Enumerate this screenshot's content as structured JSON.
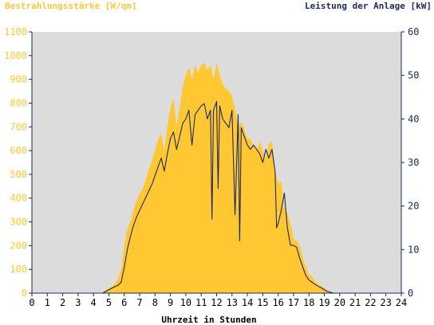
{
  "colors": {
    "irradiance": "#FFC832",
    "power": "#1B2A5C",
    "plot_background": "#DCDCDC",
    "axis": "#1B2A5C",
    "left_tick_text": "#FFC832",
    "right_tick_text": "#1B2A5C",
    "bottom_tick_text": "#000000"
  },
  "chart_data": {
    "type": "area",
    "title": "",
    "left_axis_title": "Bestrahlungsstärke [W/qm]",
    "right_axis_title": "Leistung der Anlage [kW]",
    "xlabel": "Uhrzeit in Stunden",
    "xlim": [
      0,
      24
    ],
    "ylim_left": [
      0,
      1100
    ],
    "ylim_right": [
      0,
      60
    ],
    "x_ticks": [
      "0",
      "1",
      "2",
      "3",
      "4",
      "5",
      "6",
      "7",
      "8",
      "9",
      "10",
      "11",
      "12",
      "13",
      "14",
      "15",
      "16",
      "17",
      "18",
      "19",
      "20",
      "21",
      "22",
      "23",
      "24"
    ],
    "y_left_ticks": [
      "0",
      "100",
      "200",
      "300",
      "400",
      "500",
      "600",
      "700",
      "800",
      "900",
      "1000",
      "1100"
    ],
    "y_right_ticks": [
      "0",
      "10",
      "20",
      "30",
      "40",
      "50",
      "60"
    ],
    "grid": false,
    "series": [
      {
        "name": "Bestrahlungsstärke [W/qm]",
        "axis": "left",
        "style": "area",
        "x": [
          0,
          4.5,
          5.0,
          5.4,
          5.6,
          5.8,
          6.0,
          6.2,
          6.4,
          6.6,
          6.8,
          7.0,
          7.2,
          7.4,
          7.6,
          7.8,
          8.0,
          8.2,
          8.4,
          8.6,
          8.8,
          9.0,
          9.2,
          9.4,
          9.6,
          9.8,
          10.0,
          10.2,
          10.4,
          10.6,
          10.8,
          11.0,
          11.2,
          11.4,
          11.6,
          11.8,
          12.0,
          12.2,
          12.4,
          12.6,
          12.8,
          13.0,
          13.2,
          13.4,
          13.6,
          13.8,
          14.0,
          14.2,
          14.4,
          14.6,
          14.8,
          15.0,
          15.2,
          15.4,
          15.6,
          15.8,
          16.0,
          16.2,
          16.4,
          16.6,
          16.8,
          17.0,
          17.2,
          17.4,
          17.6,
          17.8,
          18.0,
          18.2,
          18.4,
          18.6,
          18.8,
          19.0,
          19.2,
          19.4,
          19.6,
          19.8,
          20.0,
          20.2,
          24
        ],
        "y": [
          0,
          0,
          20,
          40,
          60,
          100,
          200,
          270,
          300,
          350,
          390,
          420,
          440,
          480,
          520,
          560,
          600,
          650,
          670,
          600,
          700,
          780,
          820,
          700,
          780,
          870,
          920,
          950,
          900,
          960,
          930,
          960,
          970,
          940,
          960,
          900,
          970,
          920,
          880,
          860,
          850,
          830,
          780,
          700,
          720,
          690,
          650,
          650,
          620,
          600,
          640,
          600,
          570,
          630,
          640,
          520,
          460,
          470,
          360,
          340,
          290,
          230,
          220,
          200,
          150,
          110,
          80,
          70,
          50,
          40,
          30,
          20,
          10,
          0,
          0,
          0,
          0,
          0,
          0
        ]
      },
      {
        "name": "Leistung der Anlage [kW]",
        "axis": "right",
        "style": "line",
        "x": [
          0,
          4.6,
          5.0,
          5.4,
          5.6,
          5.8,
          6.0,
          6.2,
          6.4,
          6.6,
          6.8,
          7.0,
          7.2,
          7.4,
          7.6,
          7.8,
          8.0,
          8.2,
          8.4,
          8.6,
          8.8,
          9.0,
          9.2,
          9.4,
          9.6,
          9.8,
          10.0,
          10.2,
          10.4,
          10.6,
          10.8,
          11.0,
          11.2,
          11.4,
          11.6,
          11.7,
          11.8,
          12.0,
          12.1,
          12.2,
          12.4,
          12.6,
          12.8,
          13.0,
          13.2,
          13.4,
          13.5,
          13.6,
          13.8,
          14.0,
          14.2,
          14.4,
          14.6,
          14.8,
          15.0,
          15.2,
          15.4,
          15.6,
          15.8,
          15.9,
          16.0,
          16.2,
          16.4,
          16.6,
          16.8,
          17.0,
          17.2,
          17.4,
          17.6,
          17.8,
          18.0,
          18.2,
          18.4,
          18.6,
          18.8,
          19.0,
          19.2,
          19.4,
          19.6,
          19.8,
          20.0,
          20.2,
          24
        ],
        "y": [
          0,
          0,
          0.8,
          1.5,
          1.8,
          2.5,
          6,
          10,
          13,
          15.5,
          17.5,
          19,
          20.5,
          22,
          23.5,
          25,
          27,
          29,
          31,
          28,
          32,
          35.5,
          37,
          33,
          36,
          39,
          40,
          42,
          34,
          41,
          42,
          43,
          43.5,
          40,
          42,
          17,
          42,
          44,
          24,
          43,
          40,
          39,
          38,
          42,
          18,
          41,
          12,
          38,
          36,
          34,
          33,
          34,
          33,
          32,
          30,
          33,
          31,
          33,
          28,
          15,
          16,
          19,
          23,
          15,
          11,
          11,
          10.5,
          8,
          6,
          4,
          3,
          2.5,
          2,
          1.6,
          1.2,
          0.8,
          0.4,
          0.2,
          0,
          0,
          0,
          0,
          0
        ]
      }
    ]
  }
}
